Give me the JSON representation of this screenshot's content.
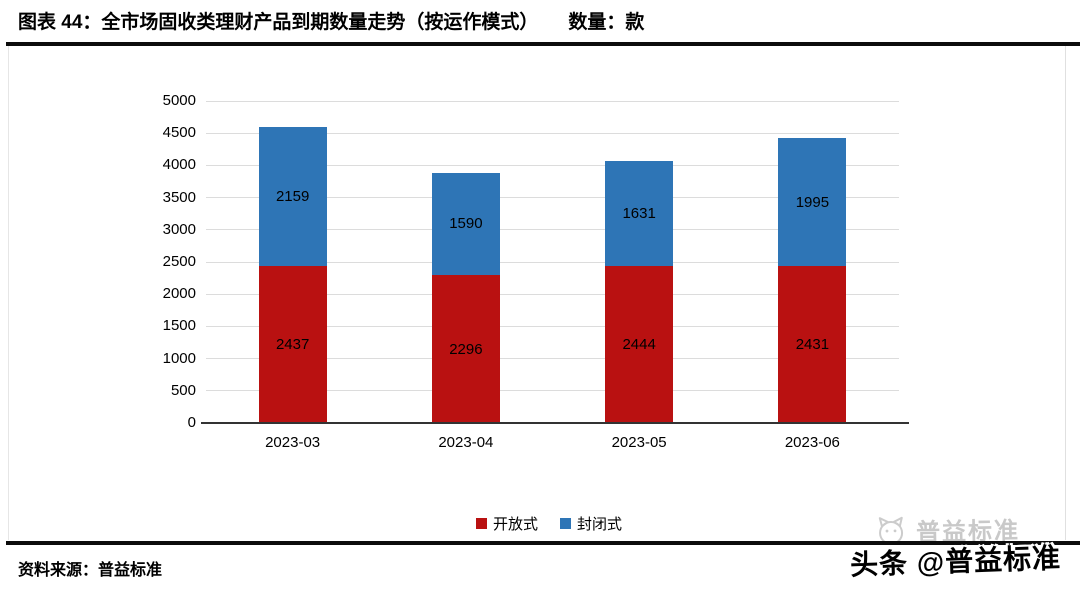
{
  "header": {
    "title": "图表 44：全市场固收类理财产品到期数量走势（按运作模式）",
    "unit_label": "数量：款"
  },
  "footer": {
    "source_label": "资料来源：普益标准"
  },
  "watermarks": {
    "gray_text": "普益标准",
    "black_text": "头条 @普益标准"
  },
  "colors": {
    "series_open": "#b91111",
    "series_closed": "#2e75b6",
    "gridline": "#dcdcdc",
    "axis": "#333333"
  },
  "chart_data": {
    "type": "bar",
    "stacked": true,
    "title": "全市场固收类理财产品到期数量走势（按运作模式）",
    "unit": "款",
    "categories": [
      "2023-03",
      "2023-04",
      "2023-05",
      "2023-06"
    ],
    "series": [
      {
        "name": "开放式",
        "color": "#b91111",
        "values": [
          2437,
          2296,
          2444,
          2431
        ]
      },
      {
        "name": "封闭式",
        "color": "#2e75b6",
        "values": [
          2159,
          1590,
          1631,
          1995
        ]
      }
    ],
    "ylim": [
      0,
      5000
    ],
    "ytick_step": 500,
    "yticks": [
      0,
      500,
      1000,
      1500,
      2000,
      2500,
      3000,
      3500,
      4000,
      4500,
      5000
    ],
    "xlabel": "",
    "ylabel": "",
    "grid": true,
    "legend_position": "bottom",
    "bar_value_labels": true
  }
}
